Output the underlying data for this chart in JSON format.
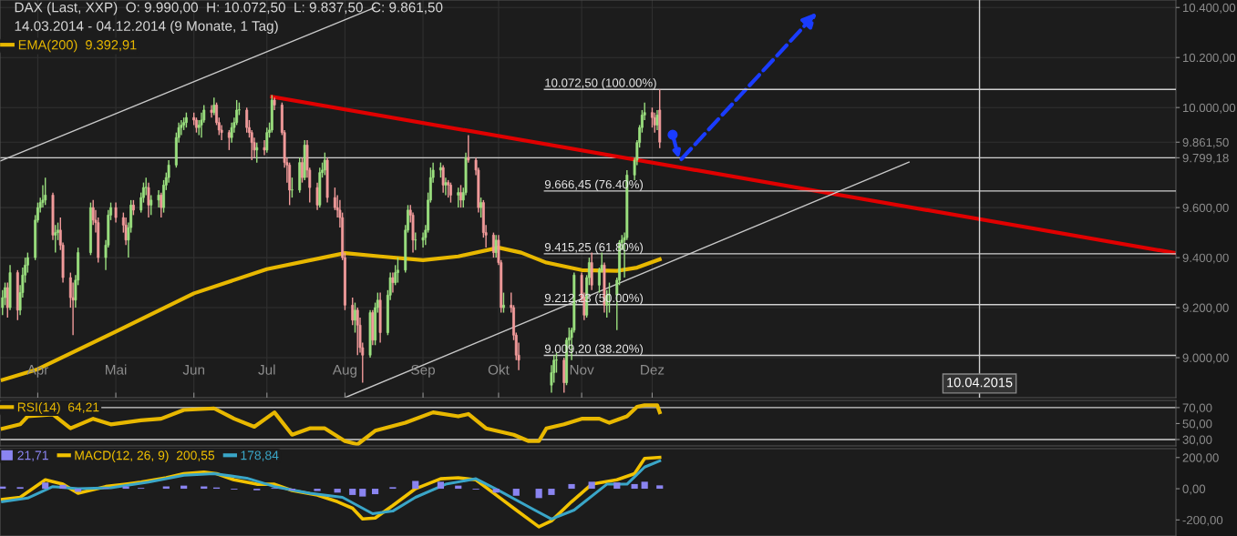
{
  "chart_data": [
    {
      "type": "candlestick",
      "title": "DAX (Last, XXP)  O: 9.990,00  H: 10.072,50  L: 9.837,50  C: 9.861,50",
      "subtitle": "14.03.2014 - 04.12.2014 (9 Monate, 1 Tag)",
      "x": [
        "2014-03-18",
        "2014-03-19",
        "2014-03-20",
        "2014-03-21",
        "2014-03-24",
        "2014-03-25",
        "2014-03-26",
        "2014-03-27",
        "2014-03-28",
        "2014-03-31",
        "2014-04-01",
        "2014-04-02",
        "2014-04-03",
        "2014-04-04",
        "2014-04-07",
        "2014-04-08",
        "2014-04-09",
        "2014-04-10",
        "2014-04-11",
        "2014-04-14",
        "2014-04-15",
        "2014-04-16",
        "2014-04-17",
        "2014-04-22",
        "2014-04-23",
        "2014-04-24",
        "2014-04-25",
        "2014-04-28",
        "2014-04-29",
        "2014-04-30",
        "2014-05-02",
        "2014-05-05",
        "2014-05-06",
        "2014-05-07",
        "2014-05-08",
        "2014-05-09",
        "2014-05-12",
        "2014-05-13",
        "2014-05-14",
        "2014-05-15",
        "2014-05-16",
        "2014-05-19",
        "2014-05-20",
        "2014-05-21",
        "2014-05-22",
        "2014-05-23",
        "2014-05-26",
        "2014-05-27",
        "2014-05-28",
        "2014-05-29",
        "2014-05-30",
        "2014-06-02",
        "2014-06-03",
        "2014-06-04",
        "2014-06-05",
        "2014-06-06",
        "2014-06-09",
        "2014-06-10",
        "2014-06-11",
        "2014-06-12",
        "2014-06-13",
        "2014-06-16",
        "2014-06-17",
        "2014-06-18",
        "2014-06-19",
        "2014-06-20",
        "2014-06-23",
        "2014-06-24",
        "2014-06-25",
        "2014-06-26",
        "2014-06-27",
        "2014-06-30",
        "2014-07-01",
        "2014-07-02",
        "2014-07-03",
        "2014-07-04",
        "2014-07-07",
        "2014-07-08",
        "2014-07-09",
        "2014-07-10",
        "2014-07-11",
        "2014-07-14",
        "2014-07-15",
        "2014-07-16",
        "2014-07-17",
        "2014-07-18",
        "2014-07-21",
        "2014-07-22",
        "2014-07-23",
        "2014-07-24",
        "2014-07-25",
        "2014-07-28",
        "2014-07-29",
        "2014-07-30",
        "2014-07-31",
        "2014-08-01",
        "2014-08-04",
        "2014-08-05",
        "2014-08-06",
        "2014-08-07",
        "2014-08-08",
        "2014-08-11",
        "2014-08-12",
        "2014-08-13",
        "2014-08-14",
        "2014-08-15",
        "2014-08-18",
        "2014-08-19",
        "2014-08-20",
        "2014-08-21",
        "2014-08-22",
        "2014-08-25",
        "2014-08-26",
        "2014-08-27",
        "2014-08-28",
        "2014-08-29",
        "2014-09-01",
        "2014-09-02",
        "2014-09-03",
        "2014-09-04",
        "2014-09-05",
        "2014-09-08",
        "2014-09-09",
        "2014-09-10",
        "2014-09-11",
        "2014-09-12",
        "2014-09-15",
        "2014-09-16",
        "2014-09-17",
        "2014-09-18",
        "2014-09-19",
        "2014-09-22",
        "2014-09-23",
        "2014-09-24",
        "2014-09-25",
        "2014-09-26",
        "2014-09-29",
        "2014-09-30",
        "2014-10-01",
        "2014-10-02",
        "2014-10-03",
        "2014-10-06",
        "2014-10-07",
        "2014-10-08",
        "2014-10-09",
        "2014-10-22",
        "2014-10-23",
        "2014-10-24",
        "2014-10-27",
        "2014-10-28",
        "2014-10-29",
        "2014-10-30",
        "2014-10-31",
        "2014-11-03",
        "2014-11-04",
        "2014-11-05",
        "2014-11-06",
        "2014-11-07",
        "2014-11-10",
        "2014-11-11",
        "2014-11-12",
        "2014-11-13",
        "2014-11-14",
        "2014-11-17",
        "2014-11-18",
        "2014-11-19",
        "2014-11-20",
        "2014-11-21",
        "2014-11-24",
        "2014-11-25",
        "2014-11-26",
        "2014-11-27",
        "2014-11-28",
        "2014-12-01",
        "2014-12-02",
        "2014-12-03",
        "2014-12-04"
      ],
      "ohlc": [
        [
          9200,
          9270,
          9170,
          9240
        ],
        [
          9240,
          9300,
          9210,
          9280
        ],
        [
          9280,
          9300,
          9160,
          9200
        ],
        [
          9200,
          9370,
          9190,
          9340
        ],
        [
          9340,
          9350,
          9150,
          9190
        ],
        [
          9190,
          9290,
          9170,
          9260
        ],
        [
          9260,
          9360,
          9240,
          9330
        ],
        [
          9330,
          9400,
          9300,
          9370
        ],
        [
          9370,
          9420,
          9340,
          9400
        ],
        [
          9400,
          9570,
          9390,
          9550
        ],
        [
          9550,
          9620,
          9540,
          9600
        ],
        [
          9600,
          9640,
          9580,
          9620
        ],
        [
          9620,
          9690,
          9600,
          9630
        ],
        [
          9630,
          9720,
          9610,
          9650
        ],
        [
          9650,
          9660,
          9470,
          9490
        ],
        [
          9490,
          9530,
          9420,
          9500
        ],
        [
          9500,
          9540,
          9470,
          9510
        ],
        [
          9510,
          9560,
          9430,
          9450
        ],
        [
          9450,
          9460,
          9300,
          9320
        ],
        [
          9320,
          9340,
          9200,
          9240
        ],
        [
          9240,
          9300,
          9090,
          9230
        ],
        [
          9230,
          9330,
          9200,
          9310
        ],
        [
          9310,
          9440,
          9290,
          9420
        ],
        [
          9420,
          9620,
          9410,
          9600
        ],
        [
          9600,
          9630,
          9530,
          9550
        ],
        [
          9550,
          9590,
          9500,
          9540
        ],
        [
          9540,
          9560,
          9380,
          9400
        ],
        [
          9400,
          9470,
          9350,
          9450
        ],
        [
          9450,
          9590,
          9440,
          9570
        ],
        [
          9570,
          9620,
          9550,
          9600
        ],
        [
          9600,
          9620,
          9540,
          9560
        ],
        [
          9560,
          9580,
          9500,
          9530
        ],
        [
          9530,
          9560,
          9450,
          9470
        ],
        [
          9470,
          9540,
          9400,
          9520
        ],
        [
          9520,
          9630,
          9500,
          9610
        ],
        [
          9610,
          9630,
          9570,
          9590
        ],
        [
          9590,
          9660,
          9580,
          9640
        ],
        [
          9640,
          9700,
          9620,
          9680
        ],
        [
          9680,
          9720,
          9650,
          9680
        ],
        [
          9680,
          9700,
          9560,
          9610
        ],
        [
          9610,
          9650,
          9570,
          9630
        ],
        [
          9630,
          9670,
          9600,
          9650
        ],
        [
          9650,
          9660,
          9560,
          9600
        ],
        [
          9600,
          9710,
          9580,
          9690
        ],
        [
          9690,
          9740,
          9670,
          9720
        ],
        [
          9720,
          9790,
          9700,
          9770
        ],
        [
          9770,
          9900,
          9760,
          9880
        ],
        [
          9880,
          9940,
          9860,
          9920
        ],
        [
          9920,
          9950,
          9890,
          9930
        ],
        [
          9930,
          9960,
          9910,
          9940
        ],
        [
          9940,
          9980,
          9920,
          9960
        ],
        [
          9960,
          9980,
          9930,
          9950
        ],
        [
          9950,
          9960,
          9900,
          9920
        ],
        [
          9920,
          9950,
          9890,
          9930
        ],
        [
          9930,
          9980,
          9880,
          9950
        ],
        [
          9950,
          10010,
          9940,
          9990
        ],
        [
          9990,
          10010,
          9960,
          9980
        ],
        [
          9980,
          10040,
          9970,
          10010
        ],
        [
          10010,
          10020,
          9930,
          9940
        ],
        [
          9940,
          9960,
          9890,
          9910
        ],
        [
          9910,
          9930,
          9870,
          9900
        ],
        [
          9900,
          9910,
          9830,
          9880
        ],
        [
          9880,
          9940,
          9860,
          9920
        ],
        [
          9920,
          9960,
          9900,
          9940
        ],
        [
          9940,
          10030,
          9930,
          9990
        ],
        [
          9990,
          10020,
          9970,
          9990
        ],
        [
          9990,
          10000,
          9900,
          9920
        ],
        [
          9920,
          9950,
          9880,
          9900
        ],
        [
          9900,
          9910,
          9790,
          9860
        ],
        [
          9860,
          9880,
          9800,
          9830
        ],
        [
          9830,
          9860,
          9780,
          9840
        ],
        [
          9840,
          9870,
          9810,
          9830
        ],
        [
          9830,
          9920,
          9820,
          9900
        ],
        [
          9900,
          9940,
          9880,
          9910
        ],
        [
          9910,
          10050,
          9900,
          10030
        ],
        [
          10030,
          10040,
          9990,
          10010
        ],
        [
          10010,
          10020,
          9890,
          9900
        ],
        [
          9900,
          9910,
          9760,
          9780
        ],
        [
          9780,
          9800,
          9700,
          9770
        ],
        [
          9770,
          9780,
          9610,
          9670
        ],
        [
          9670,
          9720,
          9640,
          9670
        ],
        [
          9670,
          9800,
          9660,
          9780
        ],
        [
          9780,
          9800,
          9700,
          9720
        ],
        [
          9720,
          9870,
          9710,
          9850
        ],
        [
          9850,
          9870,
          9720,
          9750
        ],
        [
          9750,
          9760,
          9620,
          9680
        ],
        [
          9680,
          9700,
          9590,
          9610
        ],
        [
          9610,
          9760,
          9600,
          9740
        ],
        [
          9740,
          9780,
          9720,
          9750
        ],
        [
          9750,
          9820,
          9730,
          9790
        ],
        [
          9790,
          9800,
          9620,
          9640
        ],
        [
          9640,
          9680,
          9590,
          9600
        ],
        [
          9600,
          9650,
          9560,
          9590
        ],
        [
          9590,
          9630,
          9520,
          9560
        ],
        [
          9560,
          9580,
          9390,
          9400
        ],
        [
          9400,
          9420,
          9190,
          9210
        ],
        [
          9210,
          9240,
          9130,
          9150
        ],
        [
          9150,
          9220,
          9100,
          9190
        ],
        [
          9190,
          9200,
          9010,
          9130
        ],
        [
          9130,
          9160,
          9020,
          9040
        ],
        [
          9040,
          9060,
          8900,
          9010
        ],
        [
          9010,
          9190,
          9000,
          9180
        ],
        [
          9180,
          9190,
          9050,
          9070
        ],
        [
          9070,
          9220,
          9050,
          9200
        ],
        [
          9200,
          9260,
          9180,
          9230
        ],
        [
          9230,
          9260,
          9060,
          9100
        ],
        [
          9100,
          9270,
          9090,
          9250
        ],
        [
          9250,
          9340,
          9230,
          9320
        ],
        [
          9320,
          9340,
          9260,
          9300
        ],
        [
          9300,
          9370,
          9290,
          9340
        ],
        [
          9340,
          9400,
          9300,
          9350
        ],
        [
          9350,
          9530,
          9340,
          9510
        ],
        [
          9510,
          9610,
          9500,
          9590
        ],
        [
          9590,
          9610,
          9540,
          9570
        ],
        [
          9570,
          9580,
          9420,
          9470
        ],
        [
          9470,
          9500,
          9430,
          9470
        ],
        [
          9470,
          9500,
          9440,
          9480
        ],
        [
          9480,
          9530,
          9450,
          9510
        ],
        [
          9510,
          9660,
          9500,
          9630
        ],
        [
          9630,
          9760,
          9620,
          9720
        ],
        [
          9720,
          9780,
          9700,
          9750
        ],
        [
          9750,
          9780,
          9720,
          9760
        ],
        [
          9760,
          9770,
          9660,
          9690
        ],
        [
          9690,
          9720,
          9650,
          9700
        ],
        [
          9700,
          9710,
          9640,
          9690
        ],
        [
          9690,
          9700,
          9620,
          9650
        ],
        [
          9650,
          9680,
          9600,
          9660
        ],
        [
          9660,
          9690,
          9600,
          9630
        ],
        [
          9630,
          9680,
          9600,
          9660
        ],
        [
          9660,
          9820,
          9650,
          9800
        ],
        [
          9800,
          9890,
          9780,
          9790
        ],
        [
          9790,
          9800,
          9730,
          9750
        ],
        [
          9750,
          9760,
          9580,
          9600
        ],
        [
          9600,
          9640,
          9560,
          9620
        ],
        [
          9620,
          9630,
          9480,
          9500
        ],
        [
          9500,
          9530,
          9440,
          9490
        ],
        [
          9490,
          9500,
          9400,
          9420
        ],
        [
          9420,
          9490,
          9400,
          9470
        ],
        [
          9470,
          9490,
          9370,
          9380
        ],
        [
          9380,
          9390,
          9180,
          9200
        ],
        [
          9200,
          9260,
          9180,
          9210
        ],
        [
          9210,
          9260,
          9180,
          9200
        ],
        [
          9200,
          9210,
          9070,
          9090
        ],
        [
          9090,
          9100,
          8990,
          9010
        ],
        [
          9010,
          9060,
          8950,
          8990
        ],
        [
          8890,
          8970,
          8860,
          8940
        ],
        [
          8940,
          9010,
          8900,
          8990
        ],
        [
          8990,
          9020,
          8940,
          8990
        ],
        [
          8990,
          9000,
          8860,
          8900
        ],
        [
          8900,
          9080,
          8890,
          9070
        ],
        [
          9070,
          9120,
          9040,
          9080
        ],
        [
          9080,
          9120,
          8990,
          9110
        ],
        [
          9110,
          9340,
          9100,
          9330
        ],
        [
          9330,
          9340,
          9220,
          9240
        ],
        [
          9240,
          9260,
          9150,
          9170
        ],
        [
          9170,
          9330,
          9160,
          9320
        ],
        [
          9320,
          9400,
          9290,
          9380
        ],
        [
          9380,
          9420,
          9270,
          9290
        ],
        [
          9290,
          9360,
          9260,
          9350
        ],
        [
          9350,
          9420,
          9340,
          9370
        ],
        [
          9370,
          9380,
          9180,
          9210
        ],
        [
          9210,
          9270,
          9160,
          9250
        ],
        [
          9250,
          9300,
          9180,
          9250
        ],
        [
          9250,
          9320,
          9110,
          9310
        ],
        [
          9310,
          9470,
          9290,
          9460
        ],
        [
          9460,
          9490,
          9430,
          9470
        ],
        [
          9470,
          9500,
          9320,
          9480
        ],
        [
          9480,
          9750,
          9470,
          9730
        ],
        [
          9730,
          9800,
          9710,
          9790
        ],
        [
          9790,
          9870,
          9770,
          9860
        ],
        [
          9860,
          9930,
          9840,
          9920
        ],
        [
          9920,
          9990,
          9900,
          9970
        ],
        [
          9970,
          10020,
          9950,
          9980
        ],
        [
          9980,
          10000,
          9920,
          9960
        ],
        [
          9960,
          9980,
          9900,
          9930
        ],
        [
          9930,
          9990,
          9910,
          9970
        ],
        [
          9990,
          10072.5,
          9837.5,
          9861.5
        ]
      ],
      "series": [
        {
          "type": "line",
          "name": "EMA(200)  9.392,91",
          "color": "#e8b800",
          "x": [
            "2014-03-18",
            "2014-04-01",
            "2014-05-02",
            "2014-06-02",
            "2014-07-01",
            "2014-08-01",
            "2014-08-15",
            "2014-09-01",
            "2014-09-15",
            "2014-10-01",
            "2014-10-10",
            "2014-10-20",
            "2014-11-03",
            "2014-11-17",
            "2014-11-25",
            "2014-12-04"
          ],
          "values": [
            8911,
            8954,
            9104,
            9257,
            9354,
            9418,
            9405,
            9390,
            9405,
            9440,
            9420,
            9380,
            9350,
            9347,
            9360,
            9392.91
          ]
        },
        {
          "type": "line",
          "color": "#e00000",
          "x": [
            "2014-07-03",
            "2015-06-27"
          ],
          "values": [
            10043,
            9418
          ]
        },
        {
          "type": "line",
          "color": "#c8c8c8",
          "x": [
            "2014-03-17",
            "2014-08-13"
          ],
          "values": [
            9786,
            10400
          ]
        },
        {
          "type": "line",
          "color": "#c8c8c8",
          "x": [
            "2014-08-01",
            "2015-03-13"
          ],
          "values": [
            8840,
            9782
          ]
        }
      ],
      "xlim": [
        "2014-03-17",
        "2015-06-27"
      ],
      "xticks": [
        {
          "value": "2014-04-01",
          "label": "Apr"
        },
        {
          "value": "2014-05-02",
          "label": "Mai"
        },
        {
          "value": "2014-06-02",
          "label": "Jun"
        },
        {
          "value": "2014-07-01",
          "label": "Jul"
        },
        {
          "value": "2014-08-01",
          "label": "Aug"
        },
        {
          "value": "2014-09-01",
          "label": "Sep"
        },
        {
          "value": "2014-10-01",
          "label": "Okt"
        },
        {
          "value": "2014-11-03",
          "label": "Nov"
        },
        {
          "value": "2014-12-01",
          "label": "Dez"
        }
      ],
      "ylim": [
        8840,
        10430
      ],
      "yticks": [
        {
          "value": 9000,
          "label": "9.000,00"
        },
        {
          "value": 9200,
          "label": "9.200,00"
        },
        {
          "value": 9400,
          "label": "9.400,00"
        },
        {
          "value": 9600,
          "label": "9.600,00"
        },
        {
          "value": 9799.18,
          "label": "9.799,18"
        },
        {
          "value": 9861.5,
          "label": "9.861,50"
        },
        {
          "value": 10000,
          "label": "10.000,00"
        },
        {
          "value": 10200,
          "label": "10.200,00"
        },
        {
          "value": 10400,
          "label": "10.400,00"
        }
      ],
      "ref_lines": [
        {
          "axis": "y",
          "value": 10072.5,
          "label": "10.072,50 (100.00%)"
        },
        {
          "axis": "y",
          "value": 9666.45,
          "label": "9.666,45 (76.40%)"
        },
        {
          "axis": "y",
          "value": 9415.25,
          "label": "9.415,25 (61.80%)"
        },
        {
          "axis": "y",
          "value": 9212.23,
          "label": "9.212,23 (50.00%)"
        },
        {
          "axis": "y",
          "value": 9009.2,
          "label": "9.009,20 (38.20%)"
        },
        {
          "axis": "y",
          "value": 9799.18
        },
        {
          "axis": "x",
          "value": "2015-04-10",
          "label": "10.04.2015"
        }
      ],
      "legend": "top left",
      "grid": true
    },
    {
      "type": "line",
      "xlim": [
        "2014-03-17",
        "2015-06-27"
      ],
      "ylim": [
        22,
        79
      ],
      "yticks": [
        {
          "value": 30,
          "label": "30,00"
        },
        {
          "value": 50,
          "label": "50,00"
        },
        {
          "value": 70,
          "label": "70,00"
        }
      ],
      "series": [
        {
          "name": "RSI(14)  64,21",
          "color": "#e8b800",
          "x": [
            "2014-03-18",
            "2014-03-25",
            "2014-03-28",
            "2014-04-07",
            "2014-04-14",
            "2014-04-23",
            "2014-04-30",
            "2014-05-12",
            "2014-05-20",
            "2014-05-29",
            "2014-06-10",
            "2014-06-18",
            "2014-06-26",
            "2014-07-04",
            "2014-07-11",
            "2014-07-18",
            "2014-07-24",
            "2014-08-01",
            "2014-08-06",
            "2014-08-13",
            "2014-08-25",
            "2014-09-05",
            "2014-09-15",
            "2014-09-19",
            "2014-09-26",
            "2014-10-07",
            "2014-10-13",
            "2014-10-17",
            "2014-10-20",
            "2014-10-27",
            "2014-11-03",
            "2014-11-10",
            "2014-11-14",
            "2014-11-21",
            "2014-11-25",
            "2014-11-28",
            "2014-12-03",
            "2014-12-04"
          ],
          "values": [
            43.7,
            49,
            59,
            61.5,
            44,
            56,
            49,
            54,
            56,
            67,
            69,
            56,
            46,
            64,
            36,
            44,
            44,
            28,
            24,
            41,
            51,
            64,
            59,
            62,
            44,
            36,
            28,
            28,
            44,
            49,
            56,
            56,
            51,
            59,
            71,
            73,
            73,
            64.21
          ]
        }
      ],
      "ref_lines": [
        {
          "axis": "y",
          "value": 70
        },
        {
          "axis": "y",
          "value": 30
        }
      ],
      "tick_labels": "y",
      "legend": "top left"
    },
    {
      "type": "line",
      "xlim": [
        "2014-03-17",
        "2015-06-27"
      ],
      "ylim": [
        -303,
        257
      ],
      "yticks": [
        {
          "value": -200,
          "label": "-200,00"
        },
        {
          "value": 0,
          "label": "0,00"
        },
        {
          "value": 200,
          "label": "200,00"
        }
      ],
      "series": [
        {
          "type": "bar",
          "name": "21,71",
          "color": "#8a84f0",
          "x": [
            "2014-03-18",
            "2014-03-25",
            "2014-04-04",
            "2014-04-11",
            "2014-04-17",
            "2014-04-28",
            "2014-05-06",
            "2014-05-12",
            "2014-05-22",
            "2014-05-29",
            "2014-06-06",
            "2014-06-11",
            "2014-06-18",
            "2014-06-27",
            "2014-07-04",
            "2014-07-11",
            "2014-07-21",
            "2014-07-29",
            "2014-08-04",
            "2014-08-08",
            "2014-08-13",
            "2014-08-20",
            "2014-08-29",
            "2014-09-08",
            "2014-09-15",
            "2014-09-22",
            "2014-09-30",
            "2014-10-08",
            "2014-10-17",
            "2014-10-22",
            "2014-10-30",
            "2014-11-07",
            "2014-11-17",
            "2014-11-24",
            "2014-11-28",
            "2014-12-04"
          ],
          "values": [
            14,
            10,
            40,
            25,
            -20,
            5,
            15,
            5,
            15,
            20,
            15,
            8,
            -5,
            -10,
            5,
            -10,
            -15,
            -25,
            -40,
            -50,
            -35,
            10,
            50,
            45,
            20,
            -5,
            -25,
            -45,
            -60,
            -40,
            30,
            45,
            40,
            30,
            45,
            21.71
          ]
        },
        {
          "type": "line",
          "name": "MACD(12, 26, 9)  200,55",
          "color": "#f2c200",
          "x": [
            "2014-03-18",
            "2014-03-25",
            "2014-04-04",
            "2014-04-11",
            "2014-04-17",
            "2014-04-28",
            "2014-05-06",
            "2014-05-12",
            "2014-05-22",
            "2014-05-29",
            "2014-06-06",
            "2014-06-11",
            "2014-06-18",
            "2014-06-27",
            "2014-07-04",
            "2014-07-11",
            "2014-07-21",
            "2014-07-29",
            "2014-08-04",
            "2014-08-08",
            "2014-08-13",
            "2014-08-20",
            "2014-08-29",
            "2014-09-08",
            "2014-09-15",
            "2014-09-22",
            "2014-09-30",
            "2014-10-08",
            "2014-10-17",
            "2014-10-22",
            "2014-10-30",
            "2014-11-07",
            "2014-11-17",
            "2014-11-24",
            "2014-11-28",
            "2014-12-04"
          ],
          "values": [
            -69,
            -55,
            57,
            29,
            -29,
            14,
            29,
            42,
            70,
            97,
            106,
            97,
            57,
            29,
            29,
            -11,
            -40,
            -83,
            -125,
            -194,
            -188,
            -108,
            0,
            64,
            70,
            57,
            -40,
            -137,
            -244,
            -206,
            -83,
            29,
            57,
            97,
            194,
            200.55
          ]
        },
        {
          "type": "line",
          "name": "178,84",
          "color": "#3aa6c8",
          "x": [
            "2014-03-18",
            "2014-03-28",
            "2014-04-07",
            "2014-04-17",
            "2014-04-30",
            "2014-05-15",
            "2014-05-29",
            "2014-06-10",
            "2014-06-23",
            "2014-07-04",
            "2014-07-18",
            "2014-07-31",
            "2014-08-12",
            "2014-08-20",
            "2014-08-29",
            "2014-09-10",
            "2014-09-22",
            "2014-10-01",
            "2014-10-14",
            "2014-10-22",
            "2014-10-31",
            "2014-11-13",
            "2014-11-21",
            "2014-11-28",
            "2014-12-04"
          ],
          "values": [
            -83,
            -60,
            14,
            0,
            6,
            42,
            86,
            97,
            68,
            14,
            -29,
            -55,
            -160,
            -143,
            -55,
            29,
            64,
            -11,
            -125,
            -194,
            -137,
            29,
            29,
            139,
            178.84
          ]
        }
      ],
      "tick_labels": "y",
      "legend": "top left"
    }
  ]
}
